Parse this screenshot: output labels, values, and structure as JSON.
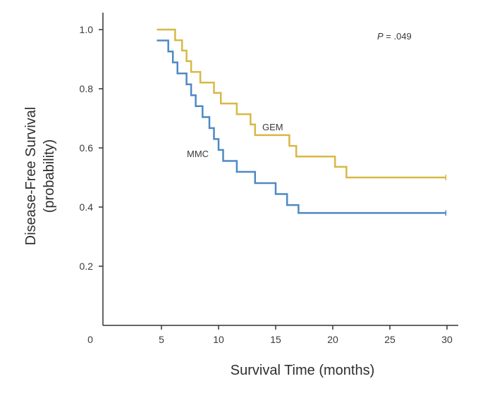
{
  "chart_data": {
    "type": "line",
    "step": true,
    "xlabel": "Survival Time (months)",
    "ylabel_line1": "Disease-Free Survival",
    "ylabel_line2": "(probability)",
    "xlim": [
      0,
      30
    ],
    "ylim": [
      0,
      1.0
    ],
    "x_ticks": [
      0,
      5,
      10,
      15,
      20,
      25,
      30
    ],
    "y_ticks": [
      0.2,
      0.4,
      0.6,
      0.8,
      1.0
    ],
    "x_tick_labels": [
      "0",
      "5",
      "10",
      "15",
      "20",
      "25",
      "30"
    ],
    "y_tick_labels": [
      "0.2",
      "0.4",
      "0.6",
      "0.8",
      "1.0"
    ],
    "annotation_p_italic": "P",
    "annotation_p_rest": " = .049",
    "grid": false,
    "series": [
      {
        "name": "GEM",
        "color": "#d8b845",
        "points": [
          [
            4.6,
            1.0
          ],
          [
            6.2,
            1.0
          ],
          [
            6.2,
            0.964
          ],
          [
            6.8,
            0.964
          ],
          [
            6.8,
            0.929
          ],
          [
            7.2,
            0.929
          ],
          [
            7.2,
            0.893
          ],
          [
            7.6,
            0.893
          ],
          [
            7.6,
            0.857
          ],
          [
            8.4,
            0.857
          ],
          [
            8.4,
            0.821
          ],
          [
            9.6,
            0.821
          ],
          [
            9.6,
            0.786
          ],
          [
            10.2,
            0.786
          ],
          [
            10.2,
            0.75
          ],
          [
            11.6,
            0.75
          ],
          [
            11.6,
            0.714
          ],
          [
            12.8,
            0.714
          ],
          [
            12.8,
            0.679
          ],
          [
            13.2,
            0.679
          ],
          [
            13.2,
            0.643
          ],
          [
            16.2,
            0.643
          ],
          [
            16.2,
            0.607
          ],
          [
            16.8,
            0.607
          ],
          [
            16.8,
            0.571
          ],
          [
            20.2,
            0.571
          ],
          [
            20.2,
            0.536
          ],
          [
            21.2,
            0.536
          ],
          [
            21.2,
            0.5
          ],
          [
            29.9,
            0.5
          ]
        ]
      },
      {
        "name": "MMC",
        "color": "#4d89c4",
        "points": [
          [
            4.6,
            0.963
          ],
          [
            5.6,
            0.963
          ],
          [
            5.6,
            0.926
          ],
          [
            6.0,
            0.926
          ],
          [
            6.0,
            0.889
          ],
          [
            6.4,
            0.889
          ],
          [
            6.4,
            0.852
          ],
          [
            7.2,
            0.852
          ],
          [
            7.2,
            0.815
          ],
          [
            7.6,
            0.815
          ],
          [
            7.6,
            0.778
          ],
          [
            8.0,
            0.778
          ],
          [
            8.0,
            0.741
          ],
          [
            8.6,
            0.741
          ],
          [
            8.6,
            0.704
          ],
          [
            9.2,
            0.704
          ],
          [
            9.2,
            0.667
          ],
          [
            9.6,
            0.667
          ],
          [
            9.6,
            0.63
          ],
          [
            10.0,
            0.63
          ],
          [
            10.0,
            0.593
          ],
          [
            10.4,
            0.593
          ],
          [
            10.4,
            0.556
          ],
          [
            11.6,
            0.556
          ],
          [
            11.6,
            0.519
          ],
          [
            13.2,
            0.519
          ],
          [
            13.2,
            0.481
          ],
          [
            15.0,
            0.481
          ],
          [
            15.0,
            0.444
          ],
          [
            16.0,
            0.444
          ],
          [
            16.0,
            0.407
          ],
          [
            17.0,
            0.407
          ],
          [
            17.0,
            0.38
          ],
          [
            29.9,
            0.38
          ]
        ]
      }
    ]
  }
}
